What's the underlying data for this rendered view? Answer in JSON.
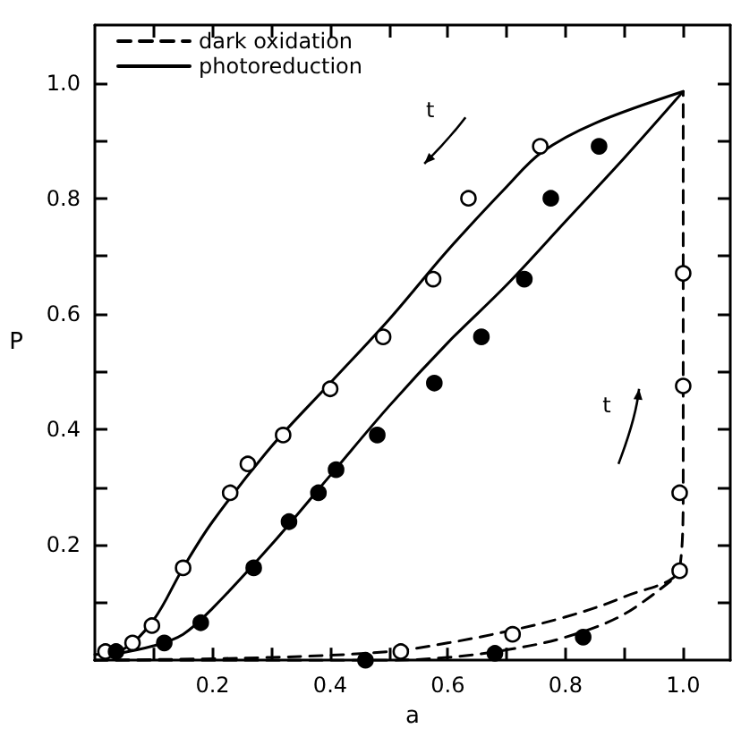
{
  "chart_data": {
    "type": "line",
    "xlabel": "a",
    "ylabel": "P",
    "xlim": [
      0,
      1.08
    ],
    "ylim": [
      0,
      1.1
    ],
    "xticks": [
      {
        "value": 0.1,
        "label": null
      },
      0.2,
      {
        "value": 0.3,
        "label": null
      },
      0.4,
      {
        "value": 0.5,
        "label": null
      },
      0.6,
      {
        "value": 0.7,
        "label": null
      },
      0.8,
      {
        "value": 0.9,
        "label": null
      },
      {
        "value": 1,
        "label": "1.0"
      }
    ],
    "yticks": [
      {
        "value": 0.1,
        "label": null
      },
      0.2,
      {
        "value": 0.3,
        "label": null
      },
      0.4,
      {
        "value": 0.5,
        "label": null
      },
      0.6,
      {
        "value": 0.7,
        "label": null
      },
      0.8,
      {
        "value": 0.9,
        "label": null
      },
      {
        "value": 1,
        "label": "1.0"
      }
    ],
    "grid": false,
    "legend": "top left",
    "annotations": [
      "t",
      "t"
    ],
    "series": [
      {
        "name": "dark oxidation",
        "line_style": "dashed",
        "marker": "none",
        "color": "#000000",
        "x": [
          0,
          0.3,
          0.5,
          0.6,
          0.7,
          0.8,
          0.9,
          0.994,
          1.0,
          1.0
        ],
        "values": [
          0,
          0.005,
          0.015,
          0.03,
          0.05,
          0.075,
          0.11,
          0.16,
          0.3,
          0.985
        ]
      },
      {
        "line_style": "dashed",
        "marker": "none",
        "color": "#000000",
        "x": [
          0,
          0.5,
          0.6,
          0.7,
          0.8,
          0.9,
          0.994
        ],
        "values": [
          0,
          0,
          0.005,
          0.018,
          0.04,
          0.08,
          0.15
        ]
      },
      {
        "name": "photoreduction",
        "line_style": "solid",
        "marker": "none",
        "color": "#000000",
        "x": [
          0,
          0.05,
          0.1,
          0.15,
          0.2,
          0.3,
          0.4,
          0.5,
          0.6,
          0.7,
          0.76,
          0.85,
          1.0
        ],
        "values": [
          0.01,
          0.02,
          0.07,
          0.16,
          0.24,
          0.37,
          0.48,
          0.59,
          0.71,
          0.82,
          0.88,
          0.93,
          0.985
        ]
      },
      {
        "line_style": "solid",
        "marker": "none",
        "color": "#000000",
        "x": [
          0.03,
          0.1,
          0.15,
          0.2,
          0.3,
          0.4,
          0.5,
          0.6,
          0.7,
          0.8,
          0.9,
          1.0
        ],
        "values": [
          0.01,
          0.025,
          0.045,
          0.09,
          0.2,
          0.32,
          0.44,
          0.55,
          0.65,
          0.76,
          0.87,
          0.985
        ]
      },
      {
        "type": "scatter",
        "marker": "circle",
        "color": "#ffffff",
        "x": [
          0.018,
          0.064,
          0.097,
          0.15,
          0.23,
          0.26,
          0.32,
          0.4,
          0.49,
          0.575,
          0.635,
          0.757
        ],
        "values": [
          0.015,
          0.03,
          0.06,
          0.16,
          0.29,
          0.34,
          0.39,
          0.47,
          0.56,
          0.66,
          0.8,
          0.89
        ]
      },
      {
        "type": "scatter",
        "marker": "circle",
        "color": "#000000",
        "x": [
          0.036,
          0.118,
          0.18,
          0.27,
          0.33,
          0.38,
          0.41,
          0.48,
          0.577,
          0.657,
          0.73,
          0.775,
          0.857
        ],
        "values": [
          0.015,
          0.03,
          0.065,
          0.16,
          0.24,
          0.29,
          0.33,
          0.39,
          0.48,
          0.56,
          0.66,
          0.8,
          0.89
        ]
      },
      {
        "type": "scatter",
        "marker": "circle",
        "color": "#ffffff",
        "x": [
          0.52,
          0.71,
          0.994,
          0.994,
          1.0,
          1.0
        ],
        "values": [
          0.015,
          0.045,
          0.155,
          0.29,
          0.475,
          0.67
        ]
      },
      {
        "type": "scatter",
        "marker": "circle",
        "color": "#000000",
        "x": [
          0.46,
          0.68,
          0.83
        ],
        "values": [
          0,
          0.012,
          0.04
        ]
      }
    ]
  }
}
